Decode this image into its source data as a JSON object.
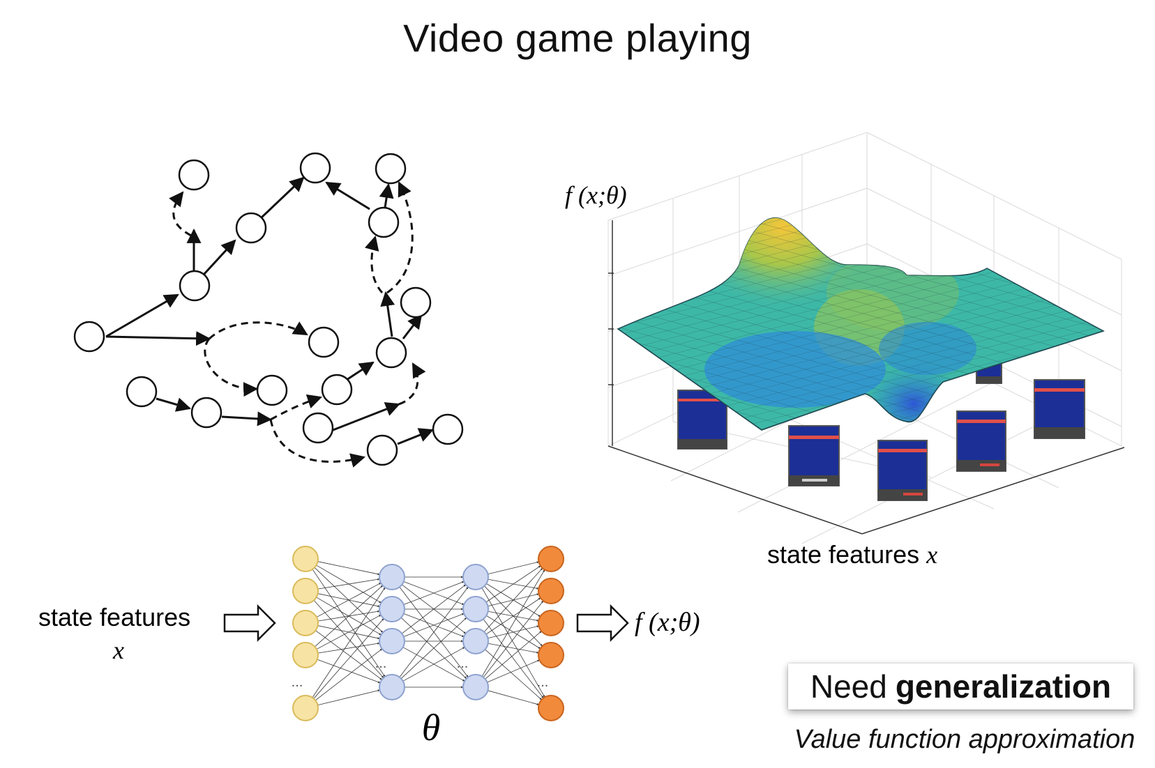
{
  "title": "Video game playing",
  "surface_plot": {
    "z_label": "f (x;θ)",
    "x_label_text": "state features",
    "x_label_var": "x"
  },
  "network": {
    "input_label_text": "state features",
    "input_label_var": "x",
    "output_label": "f (x;θ)",
    "param_symbol": "θ",
    "ellipsis": "...",
    "colors": {
      "input": "#f7e3a3",
      "hidden": "#cfd9f2",
      "output": "#f28a3c"
    }
  },
  "callout": {
    "prefix": "Need",
    "emphasis": "generalization",
    "caption": "Value function approximation"
  }
}
